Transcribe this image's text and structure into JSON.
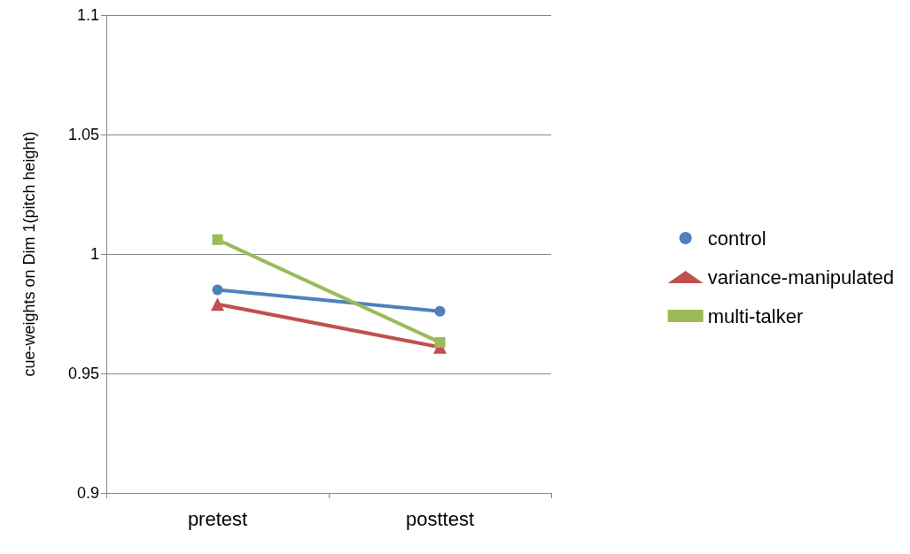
{
  "chart_data": {
    "type": "line",
    "ylabel": "cue-weights on Dim 1(pitch height)",
    "categories": [
      "pretest",
      "posttest"
    ],
    "series": [
      {
        "name": "control",
        "color": "#4f81bd",
        "marker": "circle",
        "values": [
          0.985,
          0.976
        ]
      },
      {
        "name": "variance-manipulated",
        "color": "#c0504d",
        "marker": "triangle",
        "values": [
          0.979,
          0.961
        ]
      },
      {
        "name": "multi-talker",
        "color": "#9bbb59",
        "marker": "square",
        "values": [
          1.006,
          0.963
        ]
      }
    ],
    "ylim": [
      0.9,
      1.1
    ],
    "yticks": [
      0.9,
      0.95,
      1,
      1.05,
      1.1
    ],
    "grid": "y",
    "legend": "right",
    "line_style": "solid"
  }
}
